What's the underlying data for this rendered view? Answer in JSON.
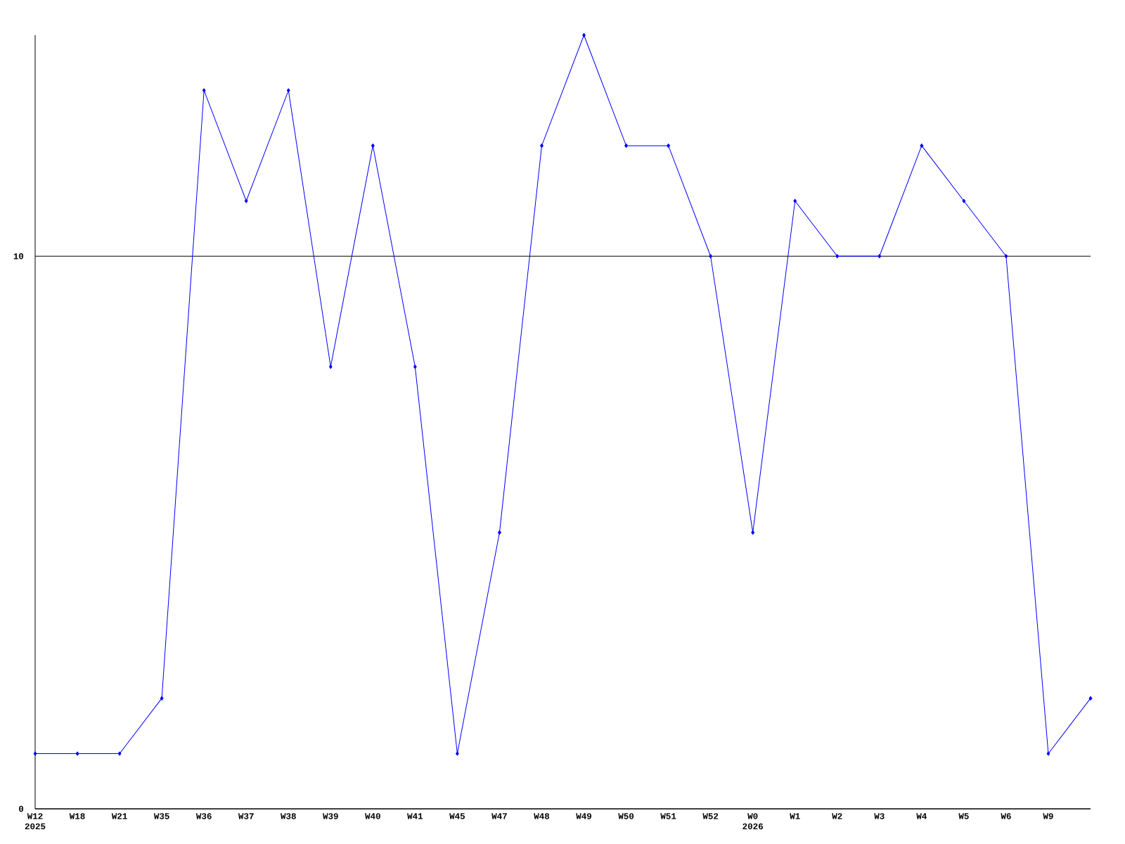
{
  "chart_data": {
    "type": "line",
    "categories": [
      "W12 2025",
      "W18",
      "W21",
      "W35",
      "W36",
      "W37",
      "W38",
      "W39",
      "W40",
      "W41",
      "W45",
      "W47",
      "W48",
      "W49",
      "W50",
      "W51",
      "W52",
      "W0 2026",
      "W1",
      "W2",
      "W3",
      "W4",
      "W5",
      "W6",
      "W9",
      null
    ],
    "values": [
      1,
      1,
      1,
      2,
      13,
      11,
      13,
      8,
      12,
      8,
      1,
      5,
      12,
      14,
      12,
      12,
      10,
      5,
      11,
      10,
      10,
      12,
      11,
      10,
      1,
      2
    ],
    "color": "#0000ff",
    "ylim": [
      0,
      14
    ],
    "yticks": [
      0,
      10
    ],
    "grid": "y",
    "marker": "diamond",
    "line_style": "solid"
  }
}
